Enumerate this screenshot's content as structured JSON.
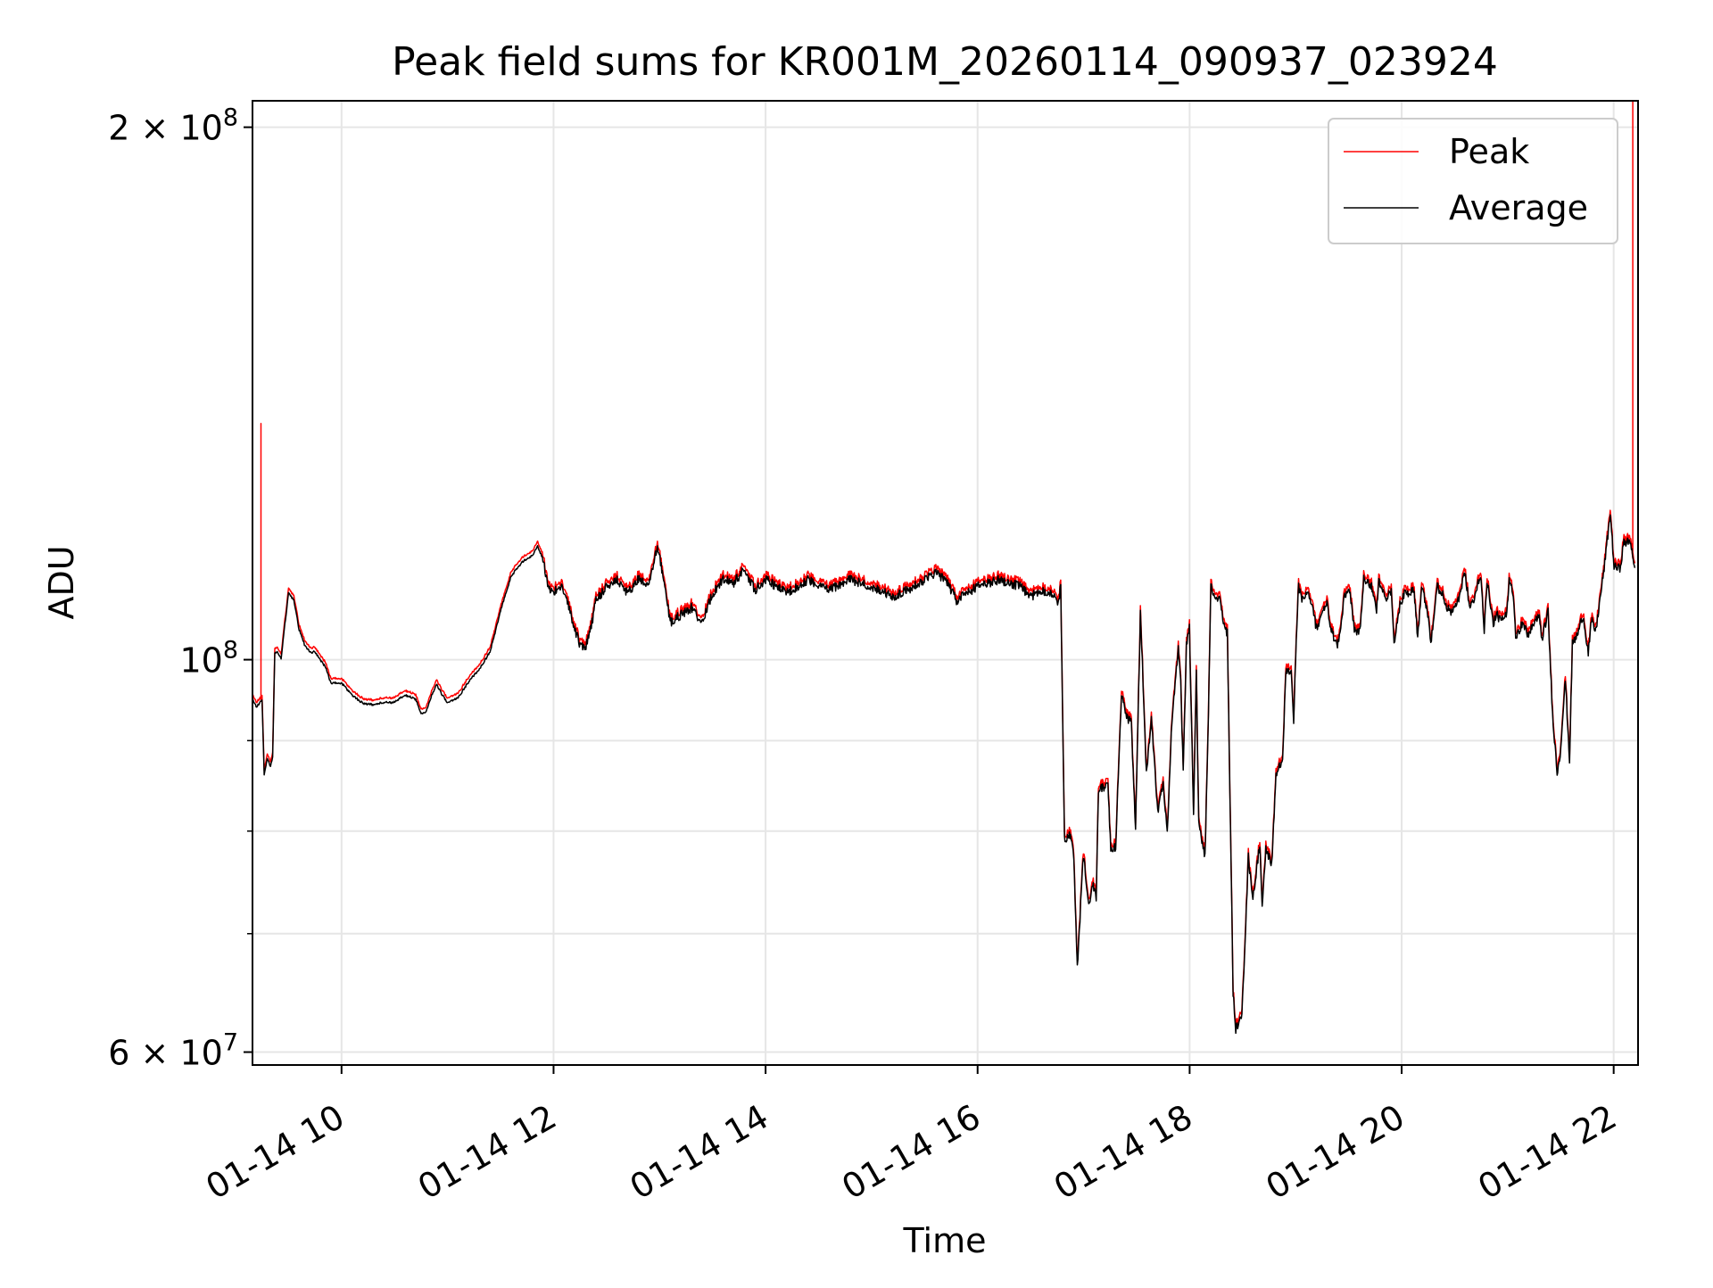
{
  "chart_data": {
    "type": "line",
    "title": "Peak field sums for KR001M_20260114_090937_023924",
    "xlabel": "Time",
    "ylabel": "ADU",
    "yscale": "log",
    "grid": true,
    "legend_position": "top-right",
    "x_unit": "hours since 01-14 00:00",
    "xlim": [
      9.16,
      22.23
    ],
    "ylim": [
      59000000,
      207000000
    ],
    "x_ticks": [
      {
        "value": 10,
        "label": "01-14 10"
      },
      {
        "value": 12,
        "label": "01-14 12"
      },
      {
        "value": 14,
        "label": "01-14 14"
      },
      {
        "value": 16,
        "label": "01-14 16"
      },
      {
        "value": 18,
        "label": "01-14 18"
      },
      {
        "value": 20,
        "label": "01-14 20"
      },
      {
        "value": 22,
        "label": "01-14 22"
      }
    ],
    "y_major_ticks": [
      {
        "value": 60000000,
        "base": "6 × 10",
        "exp": "7"
      },
      {
        "value": 100000000,
        "base": "10",
        "exp": "8"
      },
      {
        "value": 200000000,
        "base": "2 × 10",
        "exp": "8"
      }
    ],
    "y_minor_ticks": [
      70000000,
      80000000,
      90000000
    ],
    "series_colors": {
      "Peak": "#ff0000",
      "Average": "#000000"
    },
    "average_keypoints": [
      [
        9.16,
        95000000
      ],
      [
        9.2,
        94000000
      ],
      [
        9.25,
        95000000
      ],
      [
        9.27,
        86000000
      ],
      [
        9.3,
        88000000
      ],
      [
        9.33,
        87000000
      ],
      [
        9.35,
        88000000
      ],
      [
        9.37,
        101000000
      ],
      [
        9.4,
        101000000
      ],
      [
        9.43,
        100000000
      ],
      [
        9.46,
        104000000
      ],
      [
        9.5,
        109000000
      ],
      [
        9.55,
        108000000
      ],
      [
        9.6,
        104000000
      ],
      [
        9.65,
        102000000
      ],
      [
        9.7,
        101000000
      ],
      [
        9.75,
        101000000
      ],
      [
        9.8,
        100000000
      ],
      [
        9.85,
        99000000
      ],
      [
        9.9,
        97000000
      ],
      [
        10.0,
        97000000
      ],
      [
        10.1,
        95500000
      ],
      [
        10.2,
        94500000
      ],
      [
        10.3,
        94300000
      ],
      [
        10.4,
        94600000
      ],
      [
        10.5,
        94600000
      ],
      [
        10.6,
        95500000
      ],
      [
        10.7,
        95000000
      ],
      [
        10.75,
        93200000
      ],
      [
        10.8,
        93500000
      ],
      [
        10.85,
        95500000
      ],
      [
        10.9,
        96800000
      ],
      [
        10.95,
        95500000
      ],
      [
        11.0,
        94500000
      ],
      [
        11.1,
        95200000
      ],
      [
        11.2,
        97200000
      ],
      [
        11.3,
        98800000
      ],
      [
        11.4,
        101000000
      ],
      [
        11.5,
        106500000
      ],
      [
        11.6,
        111500000
      ],
      [
        11.7,
        113500000
      ],
      [
        11.8,
        114500000
      ],
      [
        11.85,
        116000000
      ],
      [
        11.9,
        114000000
      ],
      [
        11.95,
        110000000
      ],
      [
        12.0,
        109000000
      ],
      [
        12.05,
        110000000
      ],
      [
        12.1,
        109500000
      ],
      [
        12.15,
        107000000
      ],
      [
        12.2,
        104000000
      ],
      [
        12.25,
        102000000
      ],
      [
        12.3,
        101500000
      ],
      [
        12.35,
        104000000
      ],
      [
        12.4,
        108000000
      ],
      [
        12.5,
        110000000
      ],
      [
        12.6,
        111000000
      ],
      [
        12.7,
        109000000
      ],
      [
        12.8,
        111000000
      ],
      [
        12.9,
        110000000
      ],
      [
        12.98,
        116000000
      ],
      [
        13.05,
        110000000
      ],
      [
        13.1,
        105000000
      ],
      [
        13.2,
        106000000
      ],
      [
        13.3,
        107000000
      ],
      [
        13.4,
        105000000
      ],
      [
        13.5,
        109000000
      ],
      [
        13.6,
        111000000
      ],
      [
        13.7,
        110500000
      ],
      [
        13.8,
        112500000
      ],
      [
        13.9,
        109500000
      ],
      [
        14.0,
        111000000
      ],
      [
        14.2,
        109000000
      ],
      [
        14.4,
        111000000
      ],
      [
        14.6,
        109500000
      ],
      [
        14.8,
        111000000
      ],
      [
        15.0,
        110000000
      ],
      [
        15.2,
        108500000
      ],
      [
        15.4,
        110000000
      ],
      [
        15.6,
        112000000
      ],
      [
        15.7,
        111000000
      ],
      [
        15.8,
        108000000
      ],
      [
        16.0,
        110000000
      ],
      [
        16.2,
        111000000
      ],
      [
        16.4,
        110000000
      ],
      [
        16.5,
        108500000
      ],
      [
        16.6,
        109500000
      ],
      [
        16.7,
        109000000
      ]
    ],
    "peak_spikes": [
      [
        9.24,
        136000000
      ],
      [
        22.18,
        215000000
      ]
    ]
  },
  "legend": {
    "peak_label": "Peak",
    "average_label": "Average"
  }
}
